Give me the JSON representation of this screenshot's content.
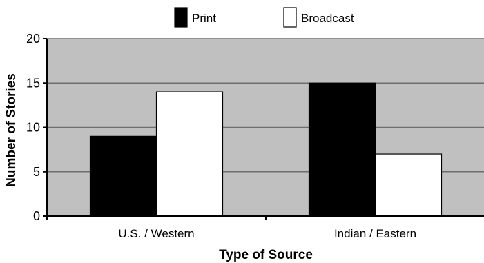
{
  "chart_data": {
    "type": "bar",
    "categories": [
      "U.S. / Western",
      "Indian / Eastern"
    ],
    "series": [
      {
        "name": "Print",
        "values": [
          9,
          15
        ],
        "color": "#000000"
      },
      {
        "name": "Broadcast",
        "values": [
          14,
          7
        ],
        "color": "#ffffff"
      }
    ],
    "xlabel": "Type of Source",
    "ylabel": "Number of Stories",
    "ylim": [
      0,
      20
    ],
    "yticks": [
      0,
      5,
      10,
      15,
      20
    ],
    "grid": true,
    "legend_position": "top-center",
    "plot_background": "#c0c0c0"
  }
}
